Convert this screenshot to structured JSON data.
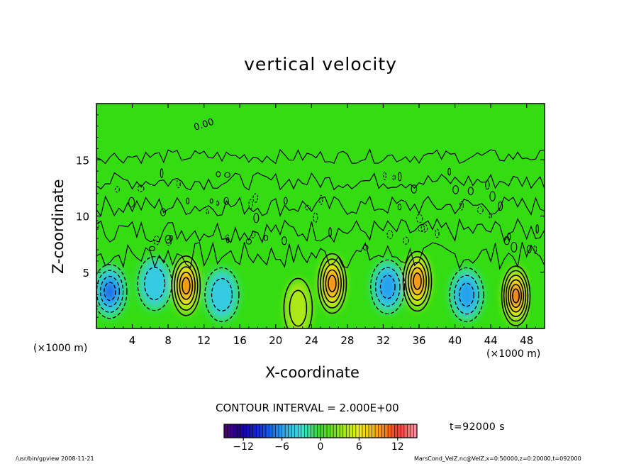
{
  "chart_data": {
    "type": "heatmap",
    "title": "vertical velocity",
    "xlabel": "X-coordinate",
    "ylabel": "Z-coordinate",
    "x_unit_label": "(×1000 m)",
    "xlim": [
      0,
      50
    ],
    "ylim": [
      0,
      20
    ],
    "x_ticks": [
      "4",
      "8",
      "12",
      "16",
      "20",
      "24",
      "28",
      "32",
      "36",
      "40",
      "44",
      "48"
    ],
    "x_tick_values": [
      4,
      8,
      12,
      16,
      20,
      24,
      28,
      32,
      36,
      40,
      44,
      48
    ],
    "y_ticks": [
      "5",
      "10",
      "15"
    ],
    "y_tick_values": [
      5,
      10,
      15
    ],
    "contour_interval_text": "CONTOUR INTERVAL = 2.000E+00",
    "contour_interval": 2.0,
    "contour_label": "0.00",
    "colorbar": {
      "range": [
        -15,
        15
      ],
      "tick_labels": [
        "−12",
        "−6",
        "0",
        "6",
        "12"
      ],
      "tick_values": [
        -12,
        -6,
        0,
        6,
        12
      ]
    },
    "features": [
      {
        "kind": "updraft",
        "x": 10,
        "z": 3.8,
        "peak": 10
      },
      {
        "kind": "updraft",
        "x": 26.3,
        "z": 4.0,
        "peak": 10
      },
      {
        "kind": "updraft",
        "x": 35.8,
        "z": 4.2,
        "peak": 10
      },
      {
        "kind": "updraft",
        "x": 46.8,
        "z": 2.9,
        "peak": 12
      },
      {
        "kind": "updraft",
        "x": 22.5,
        "z": 1.8,
        "peak": 4
      },
      {
        "kind": "downdraft",
        "x": 1.5,
        "z": 3.3,
        "peak": -8
      },
      {
        "kind": "downdraft",
        "x": 6.5,
        "z": 4.0,
        "peak": -5
      },
      {
        "kind": "downdraft",
        "x": 14,
        "z": 3.0,
        "peak": -5
      },
      {
        "kind": "downdraft",
        "x": 32.5,
        "z": 3.7,
        "peak": -6
      },
      {
        "kind": "downdraft",
        "x": 41.3,
        "z": 3.0,
        "peak": -7
      }
    ]
  },
  "annotations": {
    "time": "t=92000 s",
    "footer_left": "/usr/bin/gpview  2008-11-21",
    "footer_right": "MarsCond_VelZ.nc@VelZ,x=0:50000,z=0:20000,t=092000"
  },
  "colors": {
    "background_green": "#33dd11",
    "frame": "#000000"
  }
}
